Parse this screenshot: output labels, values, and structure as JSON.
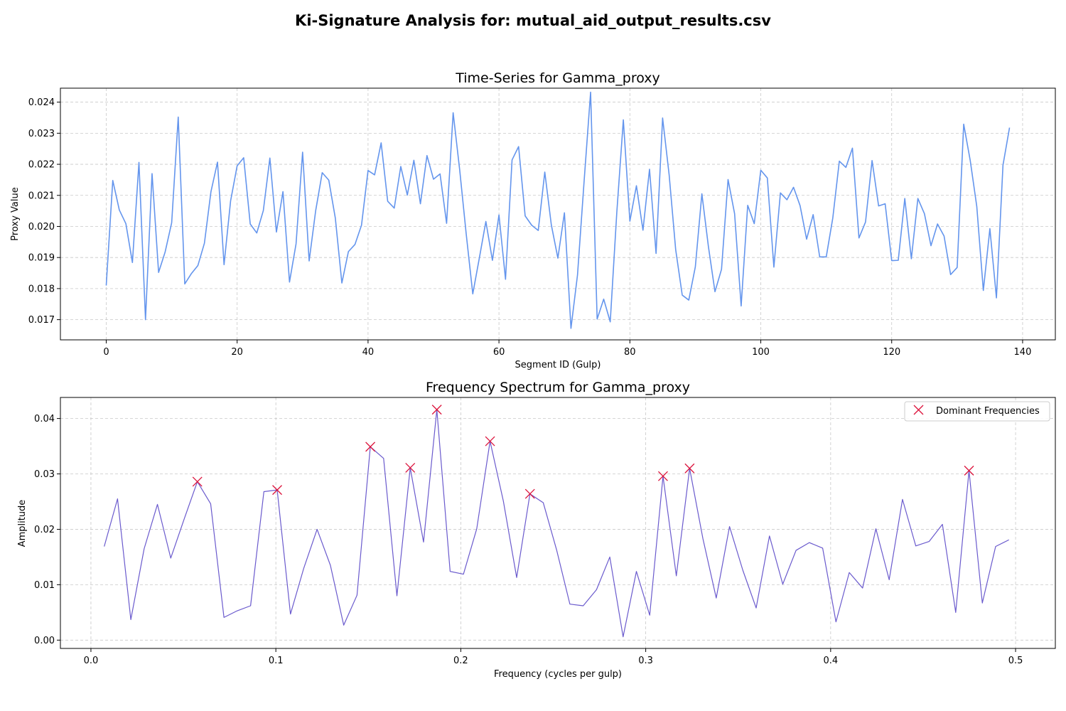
{
  "figure": {
    "suptitle": "Ki-Signature Analysis for: mutual_aid_output_results.csv"
  },
  "chart_data": [
    {
      "type": "line",
      "title": "Time-Series for Gamma_proxy",
      "xlabel": "Segment ID (Gulp)",
      "ylabel": "Proxy Value",
      "xlim": [
        -7,
        145
      ],
      "ylim": [
        0.01635,
        0.02445
      ],
      "xticks": [
        0,
        20,
        40,
        60,
        80,
        100,
        120,
        140
      ],
      "yticks": [
        0.017,
        0.018,
        0.019,
        0.02,
        0.021,
        0.022,
        0.023,
        0.024
      ],
      "ytick_labels": [
        "0.017",
        "0.018",
        "0.019",
        "0.020",
        "0.021",
        "0.022",
        "0.023",
        "0.024"
      ],
      "grid": true,
      "line_color": "#6495ED",
      "series": [
        {
          "y": [
            0.0181,
            0.02148,
            0.02053,
            0.02009,
            0.01884,
            0.02206,
            0.017,
            0.0217,
            0.01852,
            0.01918,
            0.02012,
            0.02352,
            0.01815,
            0.01848,
            0.01874,
            0.01946,
            0.02112,
            0.02207,
            0.01877,
            0.02082,
            0.02195,
            0.02221,
            0.02008,
            0.01979,
            0.02051,
            0.0222,
            0.01982,
            0.02112,
            0.01821,
            0.01944,
            0.02239,
            0.01889,
            0.02051,
            0.02173,
            0.02149,
            0.02027,
            0.01818,
            0.01919,
            0.01942,
            0.02004,
            0.0218,
            0.02166,
            0.02269,
            0.02081,
            0.02059,
            0.02193,
            0.02101,
            0.02213,
            0.02073,
            0.02228,
            0.02152,
            0.02169,
            0.0201,
            0.02366,
            0.02182,
            0.01975,
            0.01783,
            0.01898,
            0.02016,
            0.01891,
            0.02037,
            0.0183,
            0.02214,
            0.02257,
            0.02034,
            0.02004,
            0.01987,
            0.02175,
            0.02005,
            0.01898,
            0.02044,
            0.01672,
            0.01844,
            0.02143,
            0.02432,
            0.01702,
            0.01766,
            0.01693,
            0.02044,
            0.02343,
            0.02017,
            0.02131,
            0.01988,
            0.02184,
            0.01913,
            0.02349,
            0.02166,
            0.01925,
            0.01779,
            0.01763,
            0.0187,
            0.02105,
            0.01935,
            0.0179,
            0.01862,
            0.02151,
            0.02041,
            0.01744,
            0.02068,
            0.02009,
            0.02181,
            0.02156,
            0.01869,
            0.02108,
            0.02086,
            0.02126,
            0.02067,
            0.01959,
            0.02038,
            0.01902,
            0.01902,
            0.02027,
            0.0221,
            0.0219,
            0.02252,
            0.01963,
            0.02014,
            0.02212,
            0.02066,
            0.02073,
            0.0189,
            0.01891,
            0.0209,
            0.01896,
            0.0209,
            0.02041,
            0.01938,
            0.02008,
            0.01969,
            0.01845,
            0.01868,
            0.02329,
            0.02212,
            0.02064,
            0.01794,
            0.01993,
            0.0177,
            0.02197,
            0.02318
          ]
        }
      ]
    },
    {
      "type": "line",
      "title": "Frequency Spectrum for Gamma_proxy",
      "xlabel": "Frequency (cycles per gulp)",
      "ylabel": "Amplitude",
      "xlim": [
        -0.0165,
        0.5215
      ],
      "ylim": [
        -0.0015,
        0.0438
      ],
      "xticks": [
        0.0,
        0.1,
        0.2,
        0.3,
        0.4,
        0.5
      ],
      "xtick_labels": [
        "0.0",
        "0.1",
        "0.2",
        "0.3",
        "0.4",
        "0.5"
      ],
      "yticks": [
        0.0,
        0.01,
        0.02,
        0.03,
        0.04
      ],
      "ytick_labels": [
        "0.00",
        "0.01",
        "0.02",
        "0.03",
        "0.04"
      ],
      "grid": true,
      "line_color": "#6A5ACD",
      "marker_color": "#DC143C",
      "legend": {
        "placement": "upper-right",
        "entries": [
          "Dominant Frequencies"
        ]
      },
      "series": [
        {
          "x": [
            0.00719,
            0.01439,
            0.02158,
            0.02878,
            0.03597,
            0.04317,
            0.05036,
            0.05755,
            0.06475,
            0.07194,
            0.07914,
            0.08633,
            0.09353,
            0.10072,
            0.10791,
            0.11511,
            0.1223,
            0.1295,
            0.13669,
            0.14388,
            0.15108,
            0.15827,
            0.16547,
            0.17266,
            0.17986,
            0.18705,
            0.19424,
            0.20144,
            0.20863,
            0.21583,
            0.22302,
            0.23022,
            0.23741,
            0.2446,
            0.2518,
            0.25899,
            0.26619,
            0.27338,
            0.28058,
            0.28777,
            0.29496,
            0.30216,
            0.30935,
            0.31655,
            0.32374,
            0.33094,
            0.33813,
            0.34532,
            0.35252,
            0.35971,
            0.36691,
            0.3741,
            0.38129,
            0.38849,
            0.39568,
            0.40288,
            0.41007,
            0.41727,
            0.42446,
            0.43165,
            0.43885,
            0.44604,
            0.45324,
            0.46043,
            0.46763,
            0.47482,
            0.48201,
            0.48921,
            0.4964
          ],
          "y": [
            0.0169,
            0.0255,
            0.0037,
            0.0165,
            0.0245,
            0.0148,
            0.0218,
            0.0286,
            0.0246,
            0.0041,
            0.0053,
            0.0062,
            0.0268,
            0.0271,
            0.0047,
            0.013,
            0.02,
            0.0135,
            0.0027,
            0.0081,
            0.0349,
            0.0328,
            0.008,
            0.0311,
            0.0177,
            0.0416,
            0.0124,
            0.0119,
            0.0201,
            0.0359,
            0.0251,
            0.0113,
            0.0264,
            0.0248,
            0.0163,
            0.0065,
            0.0062,
            0.0091,
            0.015,
            0.0006,
            0.0124,
            0.0045,
            0.0296,
            0.0116,
            0.031,
            0.0183,
            0.0076,
            0.0205,
            0.0126,
            0.0058,
            0.0188,
            0.0101,
            0.0162,
            0.0176,
            0.0166,
            0.0033,
            0.0122,
            0.0094,
            0.0201,
            0.0109,
            0.0254,
            0.017,
            0.0178,
            0.0209,
            0.005,
            0.0306,
            0.0067,
            0.0169,
            0.0181
          ]
        },
        {
          "name": "Dominant Frequencies",
          "x": [
            0.05755,
            0.10072,
            0.15108,
            0.17266,
            0.18705,
            0.21583,
            0.23741,
            0.30935,
            0.32374,
            0.47482
          ],
          "y": [
            0.0286,
            0.0271,
            0.0349,
            0.0311,
            0.0416,
            0.0359,
            0.0264,
            0.0296,
            0.031,
            0.0306
          ]
        }
      ]
    }
  ]
}
